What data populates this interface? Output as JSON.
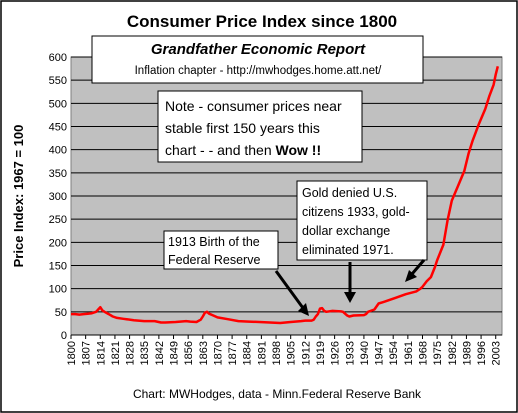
{
  "chart_data": {
    "type": "line",
    "title": "Consumer Price Index since 1800",
    "report_title": "Grandfather Economic Report",
    "report_subtitle": "Inflation chapter - http://mwhodges.home.att.net/",
    "ylabel": "Price Index: 1967 = 100",
    "xlabel": "",
    "source": "Chart: MWHodges, data - Minn.Federal Reserve Bank",
    "ylim": [
      0,
      600
    ],
    "xlim": [
      1800,
      2006
    ],
    "yticks": [
      0,
      50,
      100,
      150,
      200,
      250,
      300,
      350,
      400,
      450,
      500,
      550,
      600
    ],
    "xticks": [
      1800,
      1807,
      1814,
      1821,
      1828,
      1835,
      1842,
      1849,
      1856,
      1863,
      1870,
      1877,
      1884,
      1891,
      1898,
      1905,
      1912,
      1919,
      1926,
      1933,
      1940,
      1947,
      1954,
      1961,
      1968,
      1975,
      1982,
      1989,
      1996,
      2003
    ],
    "grid": "horizontal",
    "colors": {
      "plot_bg": "#c0c0c0",
      "line": "#ff0000",
      "arrow": "#000000"
    },
    "series": [
      {
        "x": [
          1800,
          1802,
          1804,
          1806,
          1808,
          1810,
          1812,
          1813,
          1814,
          1815,
          1816,
          1818,
          1820,
          1822,
          1825,
          1830,
          1835,
          1840,
          1843,
          1845,
          1850,
          1855,
          1857,
          1860,
          1862,
          1863,
          1864,
          1865,
          1866,
          1868,
          1870,
          1875,
          1880,
          1885,
          1890,
          1895,
          1900,
          1905,
          1910,
          1912,
          1914,
          1915,
          1916,
          1917,
          1918,
          1919,
          1920,
          1921,
          1922,
          1925,
          1929,
          1930,
          1931,
          1932,
          1933,
          1935,
          1940,
          1941,
          1942,
          1945,
          1947,
          1950,
          1955,
          1960,
          1965,
          1967,
          1968,
          1970,
          1972,
          1974,
          1975,
          1978,
          1980,
          1982,
          1985,
          1988,
          1990,
          1992,
          1995,
          1998,
          2000,
          2002,
          2003,
          2004
        ],
        "y": [
          45,
          45,
          44,
          45,
          46,
          47,
          50,
          55,
          60,
          53,
          50,
          45,
          40,
          37,
          35,
          32,
          30,
          30,
          27,
          27,
          28,
          30,
          29,
          28,
          33,
          40,
          48,
          50,
          46,
          42,
          38,
          34,
          30,
          29,
          28,
          27,
          26,
          28,
          30,
          31,
          31,
          31,
          33,
          40,
          45,
          57,
          58,
          52,
          50,
          52,
          51,
          50,
          46,
          42,
          40,
          42,
          43,
          45,
          50,
          55,
          68,
          72,
          80,
          88,
          94,
          100,
          104,
          116,
          125,
          147,
          161,
          195,
          248,
          290,
          322,
          354,
          391,
          420,
          456,
          488,
          516,
          540,
          562,
          580
        ]
      }
    ]
  },
  "annotations": {
    "note": {
      "line1": "Note - consumer prices near",
      "line2": "stable first 150 years this",
      "line3_prefix": "chart - - and then ",
      "line3_bold": "Wow !!"
    },
    "gold": {
      "line1": "Gold denied U.S.",
      "line2": "citizens 1933, gold-",
      "line3": "dollar exchange",
      "line4": "eliminated  1971."
    },
    "fed": {
      "line1": "1913  Birth of the",
      "line2": "Federal Reserve"
    }
  }
}
